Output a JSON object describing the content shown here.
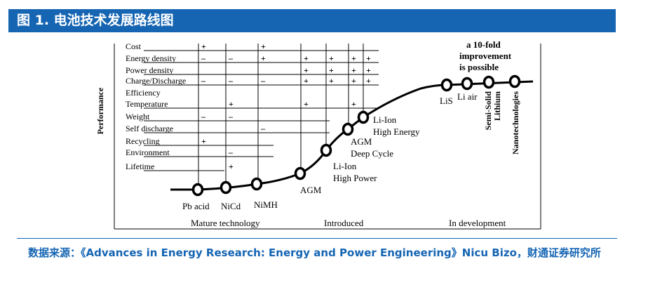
{
  "title": "图 1. 电池技术发展路线图",
  "y_axis_label": "Performance",
  "attributes": [
    "Cost",
    "Energy density",
    "Power density",
    "Charge/Discharge",
    "Efficiency",
    "Temperature",
    "Weight",
    "Self discharge",
    "Recycling",
    "Environment",
    "Lifetime"
  ],
  "technologies": [
    "Pb acid",
    "NiCd",
    "NiMH",
    "AGM",
    "Li-Ion\nHigh Power",
    "AGM\nDeep Cycle",
    "Li-Ion\nHigh Energy",
    "LiS",
    "Li air",
    "Semi-Solid\nLithium",
    "Nanotechnologies"
  ],
  "marks": {
    "Cost": [
      "+",
      "",
      "+",
      "",
      "",
      "",
      ""
    ],
    "Energy density": [
      "–",
      "–",
      "+",
      "+",
      "+",
      "+",
      "+"
    ],
    "Power density": [
      "",
      "",
      "",
      "+",
      "+",
      "+",
      "+"
    ],
    "Charge/Discharge": [
      "–",
      "–",
      "–",
      "+",
      "+",
      "+",
      "+"
    ],
    "Temperature": [
      "",
      "+",
      "",
      "+",
      "",
      "+",
      ""
    ],
    "Weight": [
      "–",
      "–",
      "",
      "",
      "",
      "",
      ""
    ],
    "Self discharge": [
      "",
      "",
      "–",
      "",
      "",
      "",
      ""
    ],
    "Recycling": [
      "+",
      "",
      "",
      "",
      "",
      "",
      ""
    ],
    "Environment": [
      "",
      "–",
      "",
      "",
      "",
      "",
      ""
    ],
    "Lifetime": [
      "",
      "+",
      "",
      "",
      "",
      "",
      ""
    ]
  },
  "annotation": "a 10-fold\nimprovement\nis possible",
  "phases": [
    "Mature technology",
    "Introduced",
    "In development"
  ],
  "source": "数据来源：《Advances in Energy Research: Energy and Power Engineering》Nicu Bizo，财通证券研究所",
  "colors": {
    "title_bg": "#1565b3",
    "source_text": "#1565b3"
  }
}
